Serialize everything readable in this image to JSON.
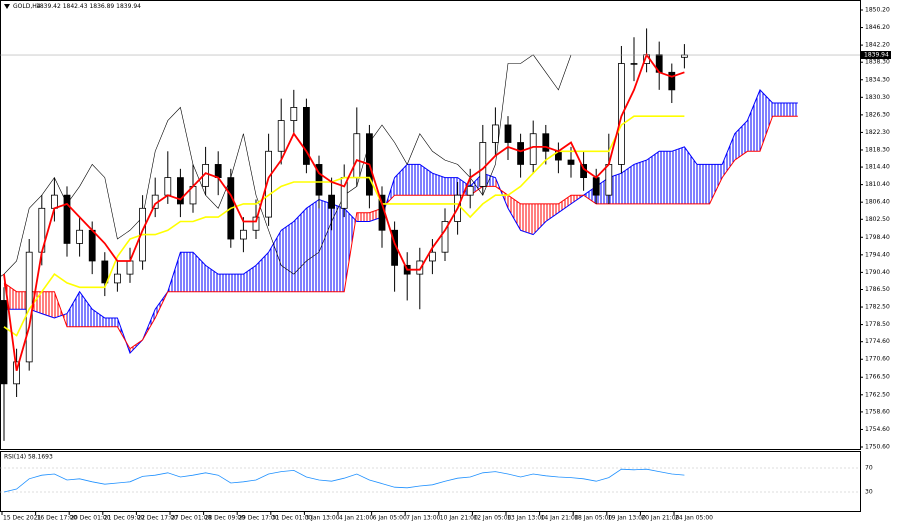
{
  "chart_data": {
    "type": "candlestick",
    "symbol": "GOLD,H4",
    "ohlc": "1839.42 1842.43 1836.89 1839.94",
    "last_price": 1839.94,
    "ylim": [
      1750.6,
      1850.2
    ],
    "yticks": [
      {
        "value": 1850.2,
        "label": "1850.20"
      },
      {
        "value": 1846.2,
        "label": "1846.20"
      },
      {
        "value": 1842.2,
        "label": "1842.20"
      },
      {
        "value": 1838.3,
        "label": "1838.30"
      },
      {
        "value": 1834.3,
        "label": "1834.30"
      },
      {
        "value": 1830.3,
        "label": "1830.30"
      },
      {
        "value": 1826.3,
        "label": "1826.30"
      },
      {
        "value": 1822.3,
        "label": "1822.30"
      },
      {
        "value": 1818.3,
        "label": "1818.30"
      },
      {
        "value": 1814.4,
        "label": "1814.40"
      },
      {
        "value": 1810.4,
        "label": "1810.40"
      },
      {
        "value": 1806.4,
        "label": "1806.40"
      },
      {
        "value": 1802.5,
        "label": "1802.50"
      },
      {
        "value": 1798.4,
        "label": "1798.40"
      },
      {
        "value": 1794.4,
        "label": "1794.40"
      },
      {
        "value": 1790.4,
        "label": "1790.40"
      },
      {
        "value": 1786.5,
        "label": "1786.50"
      },
      {
        "value": 1782.5,
        "label": "1782.50"
      },
      {
        "value": 1778.5,
        "label": "1778.50"
      },
      {
        "value": 1774.6,
        "label": "1774.60"
      },
      {
        "value": 1770.6,
        "label": "1770.60"
      },
      {
        "value": 1766.5,
        "label": "1766.50"
      },
      {
        "value": 1762.5,
        "label": "1762.50"
      },
      {
        "value": 1758.6,
        "label": "1758.60"
      },
      {
        "value": 1754.6,
        "label": "1754.60"
      },
      {
        "value": 1750.6,
        "label": "1750.60"
      }
    ],
    "x_labels": [
      "15 Dec 2021",
      "16 Dec 17:00",
      "20 Dec 01:00",
      "21 Dec 09:00",
      "22 Dec 17:00",
      "27 Dec 01:00",
      "28 Dec 09:00",
      "29 Dec 17:00",
      "31 Dec 01:00",
      "3 Jan 13:00",
      "4 Jan 21:00",
      "6 Jan 05:00",
      "7 Jan 13:00",
      "10 Jan 21:00",
      "12 Jan 05:00",
      "13 Jan 13:00",
      "14 Jan 21:00",
      "18 Jan 05:00",
      "19 Jan 13:00",
      "20 Jan 21:00",
      "24 Jan 05:00"
    ],
    "candles": {
      "open": [
        1784,
        1765,
        1770,
        1795,
        1805,
        1808,
        1797,
        1800,
        1793,
        1788,
        1790,
        1793,
        1805,
        1808,
        1812,
        1806,
        1810,
        1815,
        1812,
        1798,
        1800,
        1803,
        1818,
        1825,
        1828,
        1815,
        1808,
        1805,
        1812,
        1822,
        1808,
        1800,
        1792,
        1790,
        1793,
        1795,
        1802,
        1808,
        1810,
        1820,
        1824,
        1820,
        1815,
        1822,
        1818,
        1816,
        1815,
        1812,
        1808,
        1815,
        1838,
        1838,
        1840,
        1836,
        1839.42
      ],
      "high": [
        1787,
        1773,
        1798,
        1808,
        1812,
        1810,
        1803,
        1802,
        1795,
        1793,
        1796,
        1808,
        1812,
        1818,
        1814,
        1815,
        1819,
        1818,
        1814,
        1803,
        1807,
        1822,
        1830,
        1832,
        1830,
        1817,
        1812,
        1815,
        1828,
        1824,
        1810,
        1802,
        1795,
        1796,
        1798,
        1805,
        1811,
        1814,
        1824,
        1828,
        1826,
        1822,
        1825,
        1824,
        1820,
        1819,
        1818,
        1814,
        1822,
        1842,
        1844,
        1846,
        1843,
        1838,
        1842.43
      ],
      "low": [
        1752,
        1762,
        1768,
        1792,
        1802,
        1794,
        1794,
        1790,
        1785,
        1786,
        1788,
        1791,
        1803,
        1806,
        1803,
        1804,
        1808,
        1808,
        1796,
        1795,
        1798,
        1801,
        1815,
        1822,
        1813,
        1805,
        1800,
        1803,
        1810,
        1805,
        1796,
        1786,
        1784,
        1782,
        1790,
        1793,
        1799,
        1805,
        1808,
        1817,
        1816,
        1812,
        1813,
        1815,
        1813,
        1812,
        1809,
        1806,
        1806,
        1813,
        1834,
        1836,
        1832,
        1829,
        1836.89
      ],
      "close": [
        1765,
        1770,
        1795,
        1805,
        1808,
        1797,
        1800,
        1793,
        1788,
        1790,
        1793,
        1805,
        1808,
        1812,
        1806,
        1810,
        1815,
        1812,
        1798,
        1800,
        1803,
        1818,
        1825,
        1828,
        1815,
        1808,
        1805,
        1812,
        1822,
        1808,
        1800,
        1792,
        1790,
        1793,
        1795,
        1802,
        1808,
        1810,
        1820,
        1824,
        1820,
        1815,
        1822,
        1818,
        1816,
        1815,
        1812,
        1808,
        1815,
        1838,
        1838,
        1840,
        1836,
        1832,
        1839.94
      ]
    },
    "chikou_color": "#000000",
    "tenkan": {
      "color": "#ff0000",
      "values": [
        1790,
        1768,
        1778,
        1795,
        1805,
        1806,
        1803,
        1800,
        1797,
        1793,
        1793,
        1800,
        1806,
        1808,
        1807,
        1810,
        1813,
        1812,
        1808,
        1802,
        1802,
        1812,
        1816,
        1822,
        1818,
        1813,
        1811,
        1810,
        1816,
        1815,
        1806,
        1797,
        1791,
        1791,
        1796,
        1800,
        1805,
        1812,
        1814,
        1817,
        1819,
        1818,
        1819,
        1819,
        1818,
        1820,
        1814,
        1812,
        1815,
        1826,
        1832,
        1840,
        1836,
        1835,
        1836
      ]
    },
    "kijun": {
      "color": "#ffff00",
      "values": [
        1778,
        1776,
        1782,
        1786,
        1790,
        1788,
        1787,
        1787,
        1787,
        1794,
        1798,
        1799,
        1799,
        1800,
        1802,
        1802,
        1803,
        1803,
        1805,
        1806,
        1806,
        1808,
        1810,
        1811,
        1811,
        1811,
        1811,
        1812,
        1812,
        1812,
        1806,
        1806,
        1806,
        1806,
        1806,
        1806,
        1806,
        1803,
        1806,
        1808,
        1808,
        1810,
        1813,
        1816,
        1818,
        1818,
        1818,
        1818,
        1818,
        1824,
        1826,
        1826,
        1826,
        1826,
        1826
      ]
    },
    "span_a": {
      "color": "#0000ff",
      "values": [
        1782,
        1782,
        1782,
        1781,
        1780,
        1781,
        1786,
        1782,
        1780,
        1780,
        1772,
        1775,
        1782,
        1786,
        1795,
        1795,
        1792,
        1790,
        1790,
        1790,
        1792,
        1795,
        1800,
        1802,
        1805,
        1807,
        1806,
        1805,
        1802,
        1802,
        1803,
        1812,
        1815,
        1815,
        1813,
        1812,
        1812,
        1810,
        1813,
        1812,
        1805,
        1800,
        1799,
        1802,
        1804,
        1806,
        1808,
        1810,
        1812,
        1813,
        1815,
        1816,
        1818,
        1818,
        1819,
        1815,
        1815,
        1815,
        1822,
        1825,
        1832,
        1829,
        1829,
        1829
      ]
    },
    "span_b": {
      "color": "#ff0000",
      "values": [
        1788,
        1786,
        1786,
        1786,
        1786,
        1778,
        1778,
        1778,
        1778,
        1778,
        1773,
        1775,
        1780,
        1786,
        1786,
        1786,
        1786,
        1786,
        1786,
        1786,
        1786,
        1786,
        1786,
        1786,
        1786,
        1786,
        1786,
        1786,
        1804,
        1804,
        1805,
        1808,
        1808,
        1808,
        1808,
        1808,
        1808,
        1808,
        1810,
        1810,
        1808,
        1806,
        1806,
        1806,
        1806,
        1808,
        1808,
        1806,
        1806,
        1806,
        1806,
        1806,
        1806,
        1806,
        1806,
        1806,
        1806,
        1812,
        1816,
        1818,
        1818,
        1826,
        1826,
        1826
      ]
    },
    "rsi": {
      "label": "RSI(14) 58.1693",
      "color": "#1e90ff",
      "ylim": [
        0,
        100
      ],
      "yticks": [
        70,
        30
      ],
      "values": [
        30,
        35,
        52,
        58,
        60,
        50,
        52,
        47,
        43,
        45,
        47,
        56,
        58,
        62,
        55,
        58,
        62,
        58,
        45,
        47,
        50,
        60,
        64,
        66,
        55,
        50,
        48,
        53,
        60,
        50,
        44,
        38,
        37,
        40,
        42,
        48,
        53,
        55,
        62,
        64,
        60,
        55,
        60,
        57,
        55,
        54,
        52,
        48,
        54,
        68,
        67,
        68,
        64,
        60,
        58.1693
      ]
    }
  }
}
